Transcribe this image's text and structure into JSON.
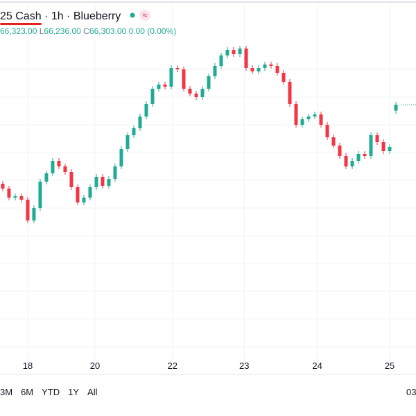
{
  "header": {
    "title": "25 Cash · 1h · Blueberry"
  },
  "ohlc": {
    "high": "66,323.00",
    "low_label": "L",
    "low": "66,236.00",
    "close_label": "C",
    "close": "66,303.00",
    "change": "0.00 (0.00%)"
  },
  "toolbar": {
    "ranges": [
      "3M",
      "6M",
      "YTD",
      "1Y",
      "All"
    ],
    "right": "03"
  },
  "chart_data": {
    "type": "candlestick",
    "up_color": "#22ab94",
    "down_color": "#f23645",
    "open": [
      65733,
      65698,
      65633,
      65643,
      65618,
      65468,
      65558,
      65748,
      65808,
      65898,
      65858,
      65818,
      65708,
      65598,
      65633,
      65708,
      65783,
      65718,
      65768,
      65858,
      65983,
      66083,
      66133,
      66218,
      66308,
      66418,
      66448,
      66433,
      66568,
      66558,
      66418,
      66383,
      66358,
      66418,
      66508,
      66583,
      66658,
      66698,
      66668,
      66708,
      66568,
      66543,
      66568,
      66593,
      66583,
      66533,
      66468,
      66308,
      66158,
      66198,
      66218,
      66233,
      66158,
      66068,
      66008,
      65933,
      65858,
      65898,
      65948,
      65933,
      66083,
      66033,
      65968,
      66260
    ],
    "high": [
      65753,
      65718,
      65663,
      65663,
      65638,
      65578,
      65768,
      65828,
      65918,
      65918,
      65878,
      65838,
      65728,
      65653,
      65728,
      65803,
      65803,
      65788,
      65878,
      66003,
      66103,
      66153,
      66238,
      66328,
      66438,
      66468,
      66468,
      66588,
      66588,
      66578,
      66438,
      66403,
      66438,
      66528,
      66603,
      66678,
      66718,
      66718,
      66728,
      66728,
      66588,
      66588,
      66613,
      66613,
      66603,
      66553,
      66488,
      66328,
      66218,
      66238,
      66253,
      66253,
      66178,
      66088,
      66028,
      65953,
      65918,
      65968,
      65968,
      66103,
      66103,
      66053,
      66018,
      66323
    ],
    "low": [
      65678,
      65613,
      65613,
      65598,
      65448,
      65448,
      65538,
      65728,
      65788,
      65838,
      65798,
      65688,
      65578,
      65578,
      65613,
      65688,
      65698,
      65698,
      65748,
      65838,
      65963,
      66063,
      66113,
      66198,
      66288,
      66398,
      66413,
      66413,
      66538,
      66398,
      66363,
      66338,
      66338,
      66398,
      66488,
      66563,
      66638,
      66648,
      66648,
      66548,
      66523,
      66523,
      66548,
      66563,
      66513,
      66448,
      66288,
      66138,
      66138,
      66178,
      66198,
      66138,
      66048,
      65988,
      65913,
      65838,
      65838,
      65878,
      65913,
      65913,
      66013,
      65948,
      65948,
      66236
    ],
    "close": [
      65698,
      65633,
      65643,
      65618,
      65468,
      65558,
      65748,
      65808,
      65898,
      65858,
      65818,
      65708,
      65598,
      65633,
      65708,
      65783,
      65718,
      65768,
      65858,
      65983,
      66083,
      66133,
      66218,
      66308,
      66418,
      66448,
      66433,
      66568,
      66558,
      66418,
      66383,
      66358,
      66418,
      66508,
      66583,
      66658,
      66698,
      66668,
      66708,
      66568,
      66543,
      66568,
      66593,
      66583,
      66533,
      66468,
      66308,
      66158,
      66198,
      66218,
      66233,
      66158,
      66068,
      66008,
      65933,
      65858,
      65898,
      65948,
      65933,
      66083,
      66033,
      65968,
      65998,
      66303
    ],
    "xlim": [
      -0.44,
      66.22
    ],
    "ylim": [
      64458,
      67058
    ],
    "xticks": [
      {
        "value": 4,
        "label": "18"
      },
      {
        "value": 14.78,
        "label": "20"
      },
      {
        "value": 27.2,
        "label": "22"
      },
      {
        "value": 38.7,
        "label": "23"
      },
      {
        "value": 50.4,
        "label": "24"
      },
      {
        "value": 62,
        "label": "25"
      }
    ],
    "grid": true
  }
}
